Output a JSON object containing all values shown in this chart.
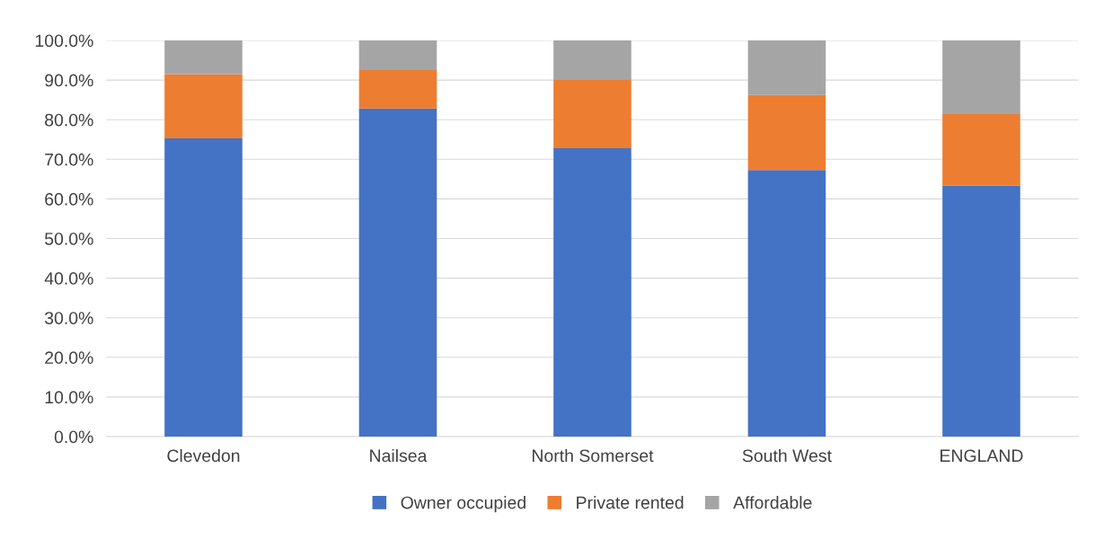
{
  "chart_data": {
    "type": "bar",
    "stacked": true,
    "categories": [
      "Clevedon",
      "Nailsea",
      "North Somerset",
      "South West",
      "ENGLAND"
    ],
    "series": [
      {
        "name": "Owner occupied",
        "color": "#4472c4",
        "values": [
          75.3,
          82.8,
          72.8,
          67.3,
          63.3
        ]
      },
      {
        "name": "Private rented",
        "color": "#ed7d31",
        "values": [
          16.2,
          9.7,
          17.2,
          18.9,
          18.1
        ]
      },
      {
        "name": "Affordable",
        "color": "#a5a5a5",
        "values": [
          8.5,
          7.5,
          10.0,
          13.8,
          18.6
        ]
      }
    ],
    "ylim": [
      0,
      100
    ],
    "yticks": [
      {
        "value": 0,
        "label": "0.0%"
      },
      {
        "value": 10,
        "label": "10.0%"
      },
      {
        "value": 20,
        "label": "20.0%"
      },
      {
        "value": 30,
        "label": "30.0%"
      },
      {
        "value": 40,
        "label": "40.0%"
      },
      {
        "value": 50,
        "label": "50.0%"
      },
      {
        "value": 60,
        "label": "60.0%"
      },
      {
        "value": 70,
        "label": "70.0%"
      },
      {
        "value": 80,
        "label": "80.0%"
      },
      {
        "value": 90,
        "label": "90.0%"
      },
      {
        "value": 100,
        "label": "100.0%"
      }
    ],
    "grid": "y",
    "legend": "bottom"
  }
}
